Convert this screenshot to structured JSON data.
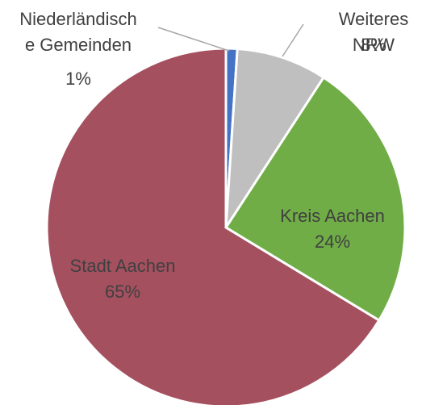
{
  "chart_data": {
    "type": "pie",
    "categories": [
      "Niederländisch\ne Gemeinden",
      "Weiteres NRW",
      "Kreis Aachen",
      "Stadt Aachen"
    ],
    "values": [
      1,
      8,
      24,
      65
    ],
    "value_labels": [
      "1%",
      "8%",
      "24%",
      "65%"
    ],
    "colors": [
      "#4472c4",
      "#bfbfbf",
      "#70ad47",
      "#a5505f"
    ]
  }
}
